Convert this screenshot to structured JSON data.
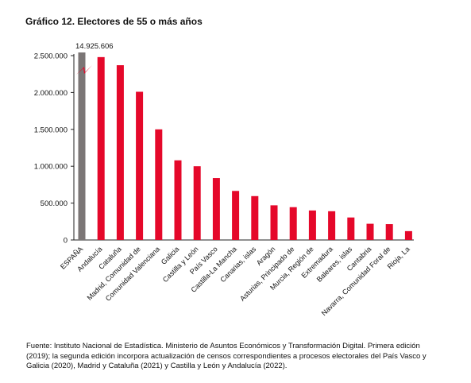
{
  "title": "Gráfico 12. Electores de 55 o más años",
  "source": "Fuente: Instituto Nacional de Estadística. Ministerio de Asuntos Económicos y Transformación Digital. Primera edición (2019); la segunda edición incorpora actualización de censos correspondientes a procesos electorales del País Vasco y Galicia (2020), Madrid y Cataluña (2021) y Castilla y León y Andalucía (2022).",
  "colors": {
    "total_bar": "#7b7676",
    "region_bar": "#e5082a",
    "axis": "#222222"
  },
  "chart_data": {
    "type": "bar",
    "title": "Gráfico 12. Electores de 55 o más años",
    "xlabel": "",
    "ylabel": "",
    "ylim": [
      0,
      2500000
    ],
    "yticks": [
      0,
      500000,
      1000000,
      1500000,
      2000000,
      2500000
    ],
    "ytick_labels": [
      "0",
      "500.000",
      "1.000.000",
      "1.500.000",
      "2.000.000",
      "2.500.000"
    ],
    "axis_break": true,
    "grid": false,
    "categories": [
      "ESPAÑA",
      "Andalucía",
      "Cataluña",
      "Madrid, Comunidad de",
      "Comunidad Valenciana",
      "Galicia",
      "Castilla y León",
      "País Vasco",
      "Castilla-La Mancha",
      "Canarias, islas",
      "Aragón",
      "Asturias, Principado de",
      "Murcia, Región de",
      "Extremadura",
      "Baleares, islas",
      "Cantabria",
      "Navarra, Comunidad Foral de",
      "Rioja, La"
    ],
    "values": [
      14925606,
      2480000,
      2370000,
      2010000,
      1500000,
      1080000,
      1000000,
      840000,
      665000,
      595000,
      470000,
      445000,
      400000,
      390000,
      305000,
      220000,
      215000,
      120000
    ],
    "data_labels": [
      {
        "category": "ESPAÑA",
        "text": "14.925.606"
      }
    ]
  }
}
